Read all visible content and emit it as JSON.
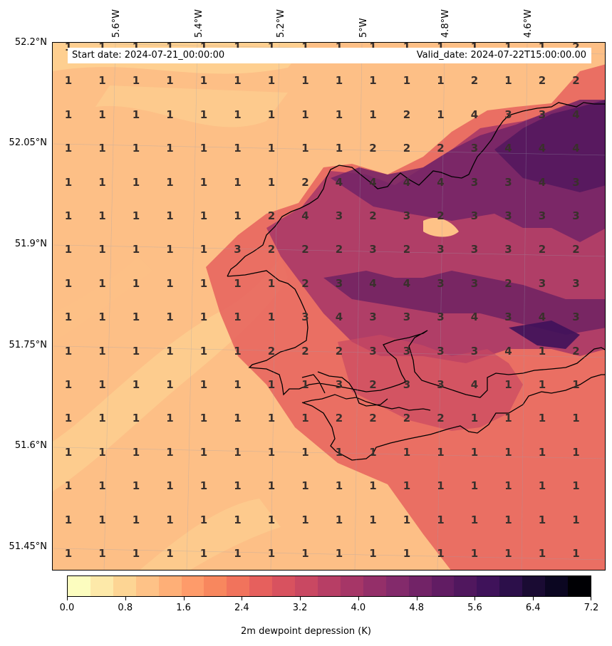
{
  "header": {
    "start_date": "Start date: 2024-07-21_00:00:00",
    "valid_date": "Valid_date: 2024-07-22T15:00:00.00"
  },
  "axes": {
    "lon_labels": [
      "5.6°W",
      "5.4°W",
      "5.2°W",
      "5°W",
      "4.8°W",
      "4.6°W"
    ],
    "lat_labels": [
      "52.2°N",
      "52.05°N",
      "51.9°N",
      "51.75°N",
      "51.6°N",
      "51.45°N"
    ]
  },
  "colorbar": {
    "label": "2m dewpoint depression (K)",
    "ticks": [
      "0.0",
      "0.8",
      "1.6",
      "2.4",
      "3.2",
      "4.0",
      "4.8",
      "5.6",
      "6.4",
      "7.2"
    ],
    "colors": [
      "#fcfdbf",
      "#fde9a9",
      "#fdd594",
      "#fec287",
      "#feaf77",
      "#fe9b6a",
      "#f8875e",
      "#f1735c",
      "#e6605d",
      "#d8525f",
      "#c94862",
      "#b73e65",
      "#a63667",
      "#942f69",
      "#832a6b",
      "#722367",
      "#611c63",
      "#50175e",
      "#3f125a",
      "#2c0f4a",
      "#1a0b33",
      "#0b0621",
      "#000004"
    ]
  },
  "chart_data": {
    "type": "heatmap",
    "title": "",
    "values_label": "2m dewpoint depression (K)",
    "range": [
      0.0,
      7.2
    ],
    "grid_values": [
      [
        1,
        1,
        1,
        1,
        1,
        1,
        1,
        1,
        1,
        1,
        1,
        1,
        1,
        1,
        1,
        2
      ],
      [
        1,
        1,
        1,
        1,
        1,
        1,
        1,
        1,
        1,
        1,
        1,
        1,
        2,
        1,
        2,
        2
      ],
      [
        1,
        1,
        1,
        1,
        1,
        1,
        1,
        1,
        1,
        1,
        2,
        1,
        4,
        3,
        3,
        4
      ],
      [
        1,
        1,
        1,
        1,
        1,
        1,
        1,
        1,
        1,
        2,
        2,
        2,
        3,
        4,
        4,
        4
      ],
      [
        1,
        1,
        1,
        1,
        1,
        1,
        1,
        2,
        4,
        4,
        4,
        4,
        3,
        3,
        4,
        3
      ],
      [
        1,
        1,
        1,
        1,
        1,
        1,
        2,
        4,
        3,
        2,
        3,
        2,
        3,
        3,
        3,
        3
      ],
      [
        1,
        1,
        1,
        1,
        1,
        3,
        2,
        2,
        2,
        3,
        2,
        3,
        3,
        3,
        2,
        2
      ],
      [
        1,
        1,
        1,
        1,
        1,
        1,
        1,
        2,
        3,
        4,
        4,
        3,
        3,
        2,
        3,
        3
      ],
      [
        1,
        1,
        1,
        1,
        1,
        1,
        1,
        3,
        4,
        3,
        3,
        3,
        4,
        3,
        4,
        3
      ],
      [
        1,
        1,
        1,
        1,
        1,
        1,
        2,
        2,
        2,
        3,
        3,
        3,
        3,
        4,
        1,
        2
      ],
      [
        1,
        1,
        1,
        1,
        1,
        1,
        1,
        1,
        3,
        2,
        3,
        3,
        4,
        1,
        1,
        1
      ],
      [
        1,
        1,
        1,
        1,
        1,
        1,
        1,
        1,
        2,
        2,
        2,
        2,
        1,
        1,
        1,
        1
      ],
      [
        1,
        1,
        1,
        1,
        1,
        1,
        1,
        1,
        1,
        1,
        1,
        1,
        1,
        1,
        1,
        1
      ],
      [
        1,
        1,
        1,
        1,
        1,
        1,
        1,
        1,
        1,
        1,
        1,
        1,
        1,
        1,
        1,
        1
      ],
      [
        1,
        1,
        1,
        1,
        1,
        1,
        1,
        1,
        1,
        1,
        1,
        1,
        1,
        1,
        1,
        1
      ],
      [
        1,
        1,
        1,
        1,
        1,
        1,
        1,
        1,
        1,
        1,
        1,
        1,
        1,
        1,
        1,
        1
      ]
    ]
  }
}
